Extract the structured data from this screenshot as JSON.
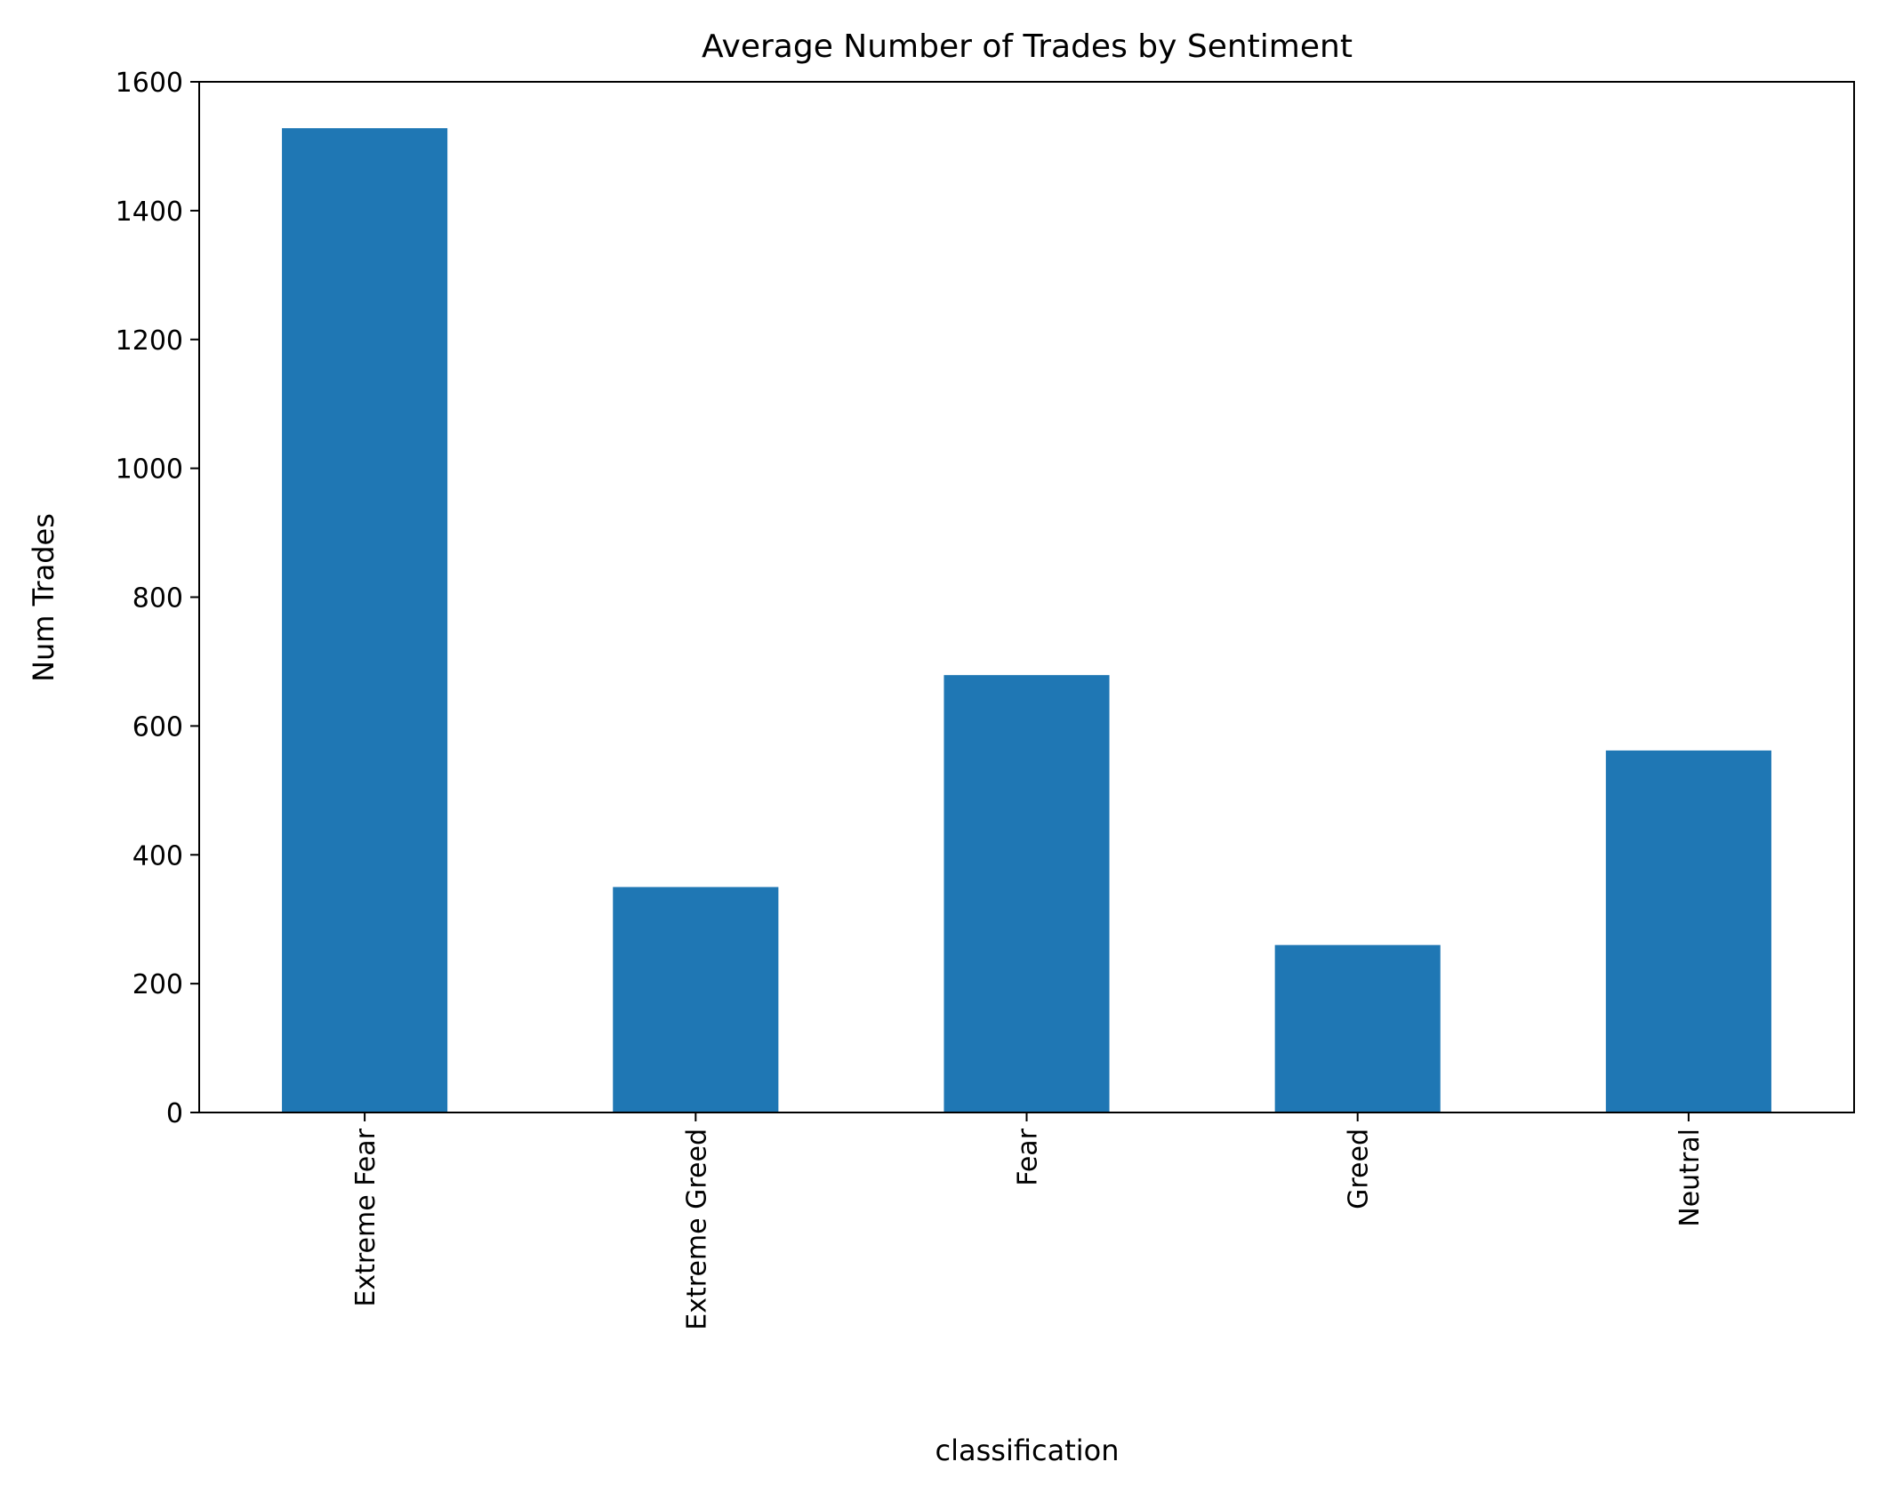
{
  "chart_data": {
    "type": "bar",
    "title": "Average Number of Trades by Sentiment",
    "xlabel": "classification",
    "ylabel": "Num Trades",
    "categories": [
      "Extreme Fear",
      "Extreme Greed",
      "Fear",
      "Greed",
      "Neutral"
    ],
    "values": [
      1528,
      350,
      679,
      260,
      562
    ],
    "ylim": [
      0,
      1600
    ],
    "yticks": [
      0,
      200,
      400,
      600,
      800,
      1000,
      1200,
      1400,
      1600
    ],
    "ytick_labels": [
      "0",
      "200",
      "400",
      "600",
      "800",
      "1000",
      "1200",
      "1400",
      "1600"
    ],
    "grid": false,
    "legend": "none",
    "bar_color": "#1f77b4"
  }
}
